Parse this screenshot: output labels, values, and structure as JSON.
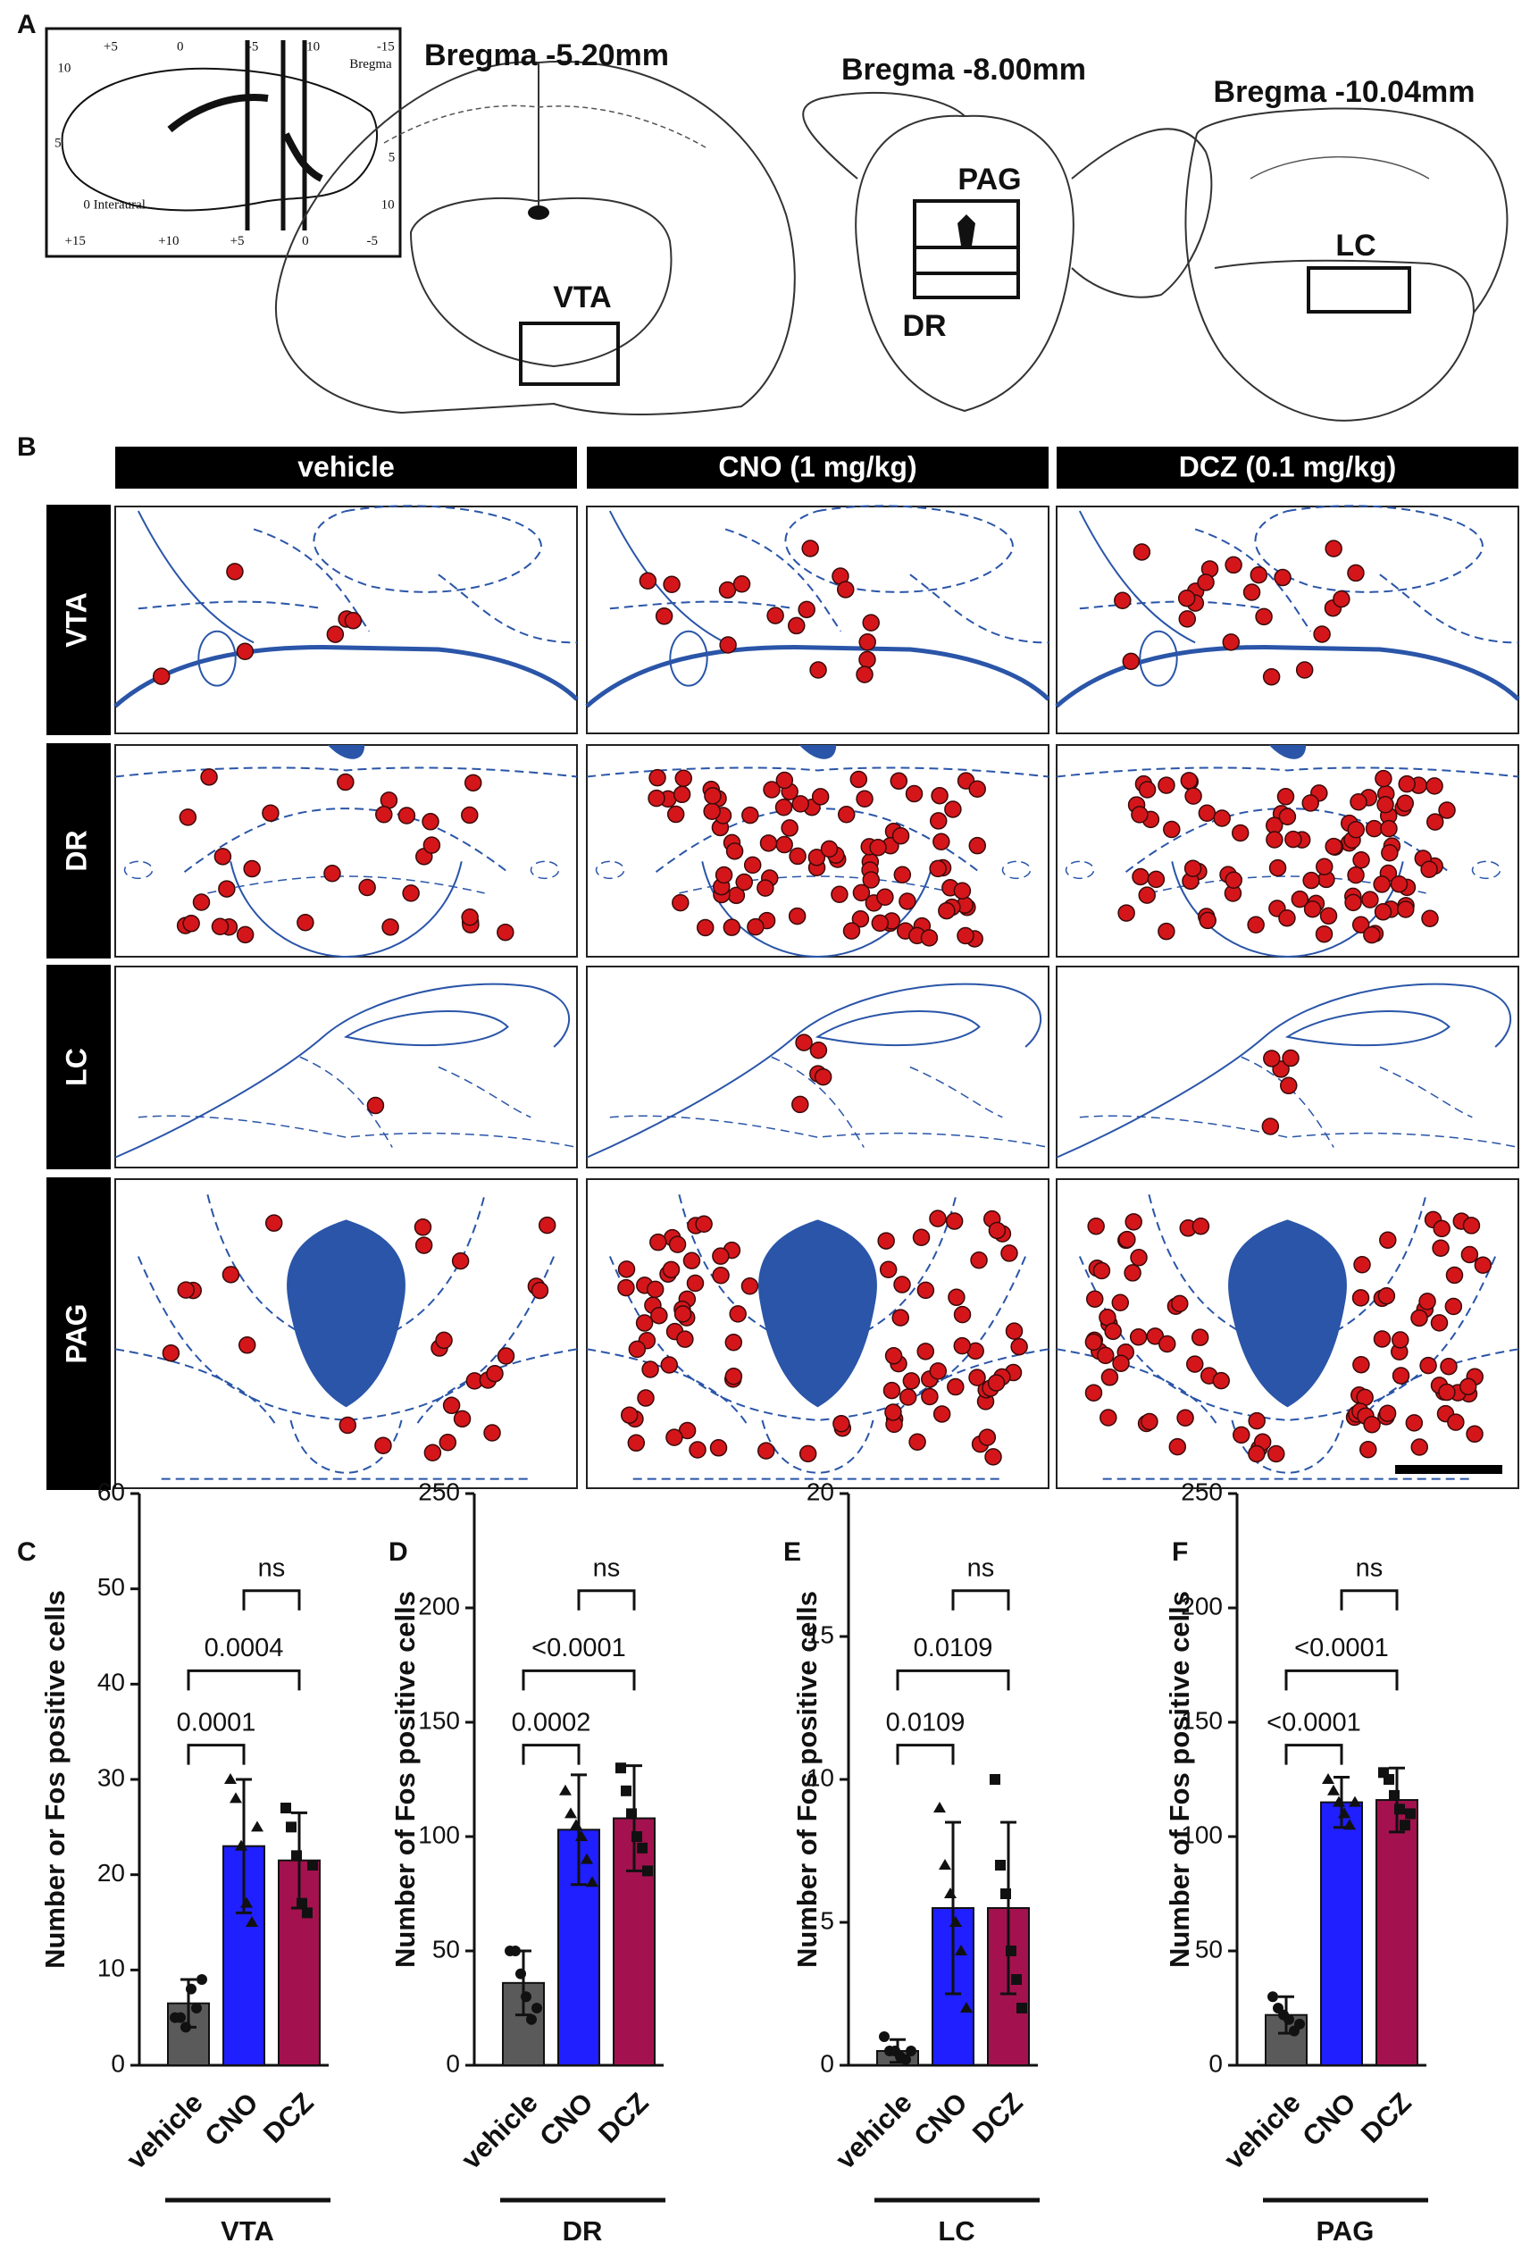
{
  "panel_labels": [
    "A",
    "B",
    "C",
    "D",
    "E",
    "F"
  ],
  "atlas": {
    "bregma": [
      "Bregma -5.20mm",
      "Bregma -8.00mm",
      "Bregma -10.04mm"
    ],
    "regions": [
      "VTA",
      "PAG",
      "DR",
      "LC"
    ],
    "inset_labels": [
      "10",
      "+5",
      "0",
      "-5",
      "-10",
      "-15",
      "Bregma",
      "5",
      "0 Interaural",
      "5",
      "10",
      "+15",
      "+10",
      "+5",
      "0",
      "-5"
    ]
  },
  "grid_panel": {
    "columns": [
      "vehicle",
      "CNO (1 mg/kg)",
      "DCZ (0.1 mg/kg)"
    ],
    "rows": [
      "VTA",
      "DR",
      "LC",
      "PAG"
    ]
  },
  "chart_data": [
    {
      "type": "bar",
      "ylabel": "Number or Fos positive cells",
      "group_label": "VTA",
      "categories": [
        "vehicle",
        "CNO",
        "DCZ"
      ],
      "values": [
        6.5,
        23,
        21.5
      ],
      "errors": [
        2.5,
        7,
        5
      ],
      "points": [
        [
          5,
          5,
          4,
          8,
          6,
          9
        ],
        [
          30,
          28,
          23,
          17,
          15,
          25
        ],
        [
          27,
          25,
          22,
          17,
          16,
          21
        ]
      ],
      "colors": [
        "#5a5a5a",
        "#1f1fff",
        "#a3124e"
      ],
      "ylim": [
        0,
        60
      ],
      "yticks": [
        0,
        10,
        20,
        30,
        40,
        50,
        60
      ],
      "annotations": [
        "0.0001",
        "0.0004",
        "ns"
      ]
    },
    {
      "type": "bar",
      "ylabel": "Number of Fos positive cells",
      "group_label": "DR",
      "categories": [
        "vehicle",
        "CNO",
        "DCZ"
      ],
      "values": [
        36,
        103,
        108
      ],
      "errors": [
        14,
        24,
        23
      ],
      "points": [
        [
          50,
          50,
          40,
          30,
          20,
          25
        ],
        [
          120,
          110,
          105,
          100,
          90,
          80
        ],
        [
          130,
          120,
          110,
          100,
          95,
          85
        ]
      ],
      "colors": [
        "#5a5a5a",
        "#1f1fff",
        "#a3124e"
      ],
      "ylim": [
        0,
        250
      ],
      "yticks": [
        0,
        50,
        100,
        150,
        200,
        250
      ],
      "annotations": [
        "0.0002",
        "<0.0001",
        "ns"
      ]
    },
    {
      "type": "bar",
      "ylabel": "Number of Fos positive cells",
      "group_label": "LC",
      "categories": [
        "vehicle",
        "CNO",
        "DCZ"
      ],
      "values": [
        0.5,
        5.5,
        5.5
      ],
      "errors": [
        0.4,
        3,
        3
      ],
      "points": [
        [
          1,
          0.5,
          0.5,
          0.3,
          0.2,
          0.5
        ],
        [
          9,
          7,
          6,
          5,
          4,
          2
        ],
        [
          10,
          7,
          6,
          4,
          3,
          2
        ]
      ],
      "colors": [
        "#5a5a5a",
        "#1f1fff",
        "#a3124e"
      ],
      "ylim": [
        0,
        20
      ],
      "yticks": [
        0,
        5,
        10,
        15,
        20
      ],
      "annotations": [
        "0.0109",
        "0.0109",
        "ns"
      ]
    },
    {
      "type": "bar",
      "ylabel": "Number of  Fos positive cells",
      "group_label": "PAG",
      "categories": [
        "vehicle",
        "CNO",
        "DCZ"
      ],
      "values": [
        22,
        115,
        116
      ],
      "errors": [
        8,
        11,
        14
      ],
      "points": [
        [
          30,
          25,
          22,
          20,
          15,
          18
        ],
        [
          125,
          120,
          115,
          110,
          105,
          115
        ],
        [
          128,
          125,
          118,
          112,
          105,
          110
        ]
      ],
      "colors": [
        "#5a5a5a",
        "#1f1fff",
        "#a3124e"
      ],
      "ylim": [
        0,
        250
      ],
      "yticks": [
        0,
        50,
        100,
        150,
        200,
        250
      ],
      "annotations": [
        "<0.0001",
        "<0.0001",
        "ns"
      ]
    }
  ]
}
